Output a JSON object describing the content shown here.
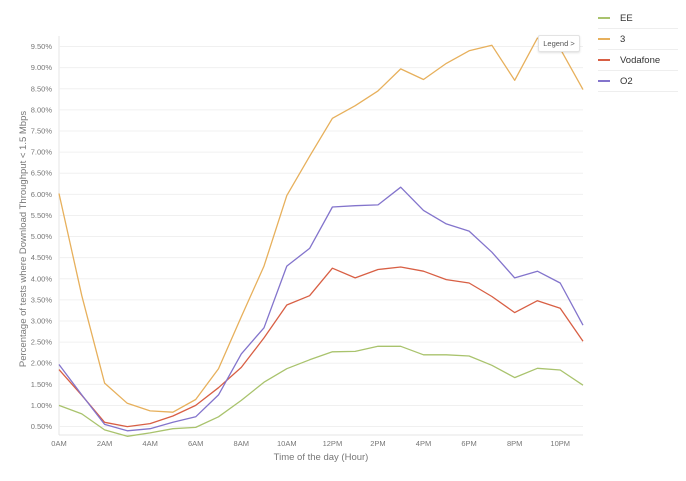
{
  "legend_button": {
    "label": "Legend",
    "chevron": ">"
  },
  "chart_data": {
    "type": "line",
    "xlabel": "Time of the day (Hour)",
    "ylabel": "Percentage of tests where Download Throughput < 1.5 Mbps",
    "x": [
      0,
      1,
      2,
      3,
      4,
      5,
      6,
      7,
      8,
      9,
      10,
      11,
      12,
      13,
      14,
      15,
      16,
      17,
      18,
      19,
      20,
      21,
      22,
      23
    ],
    "x_ticks": [
      {
        "x": 0,
        "label": "0AM"
      },
      {
        "x": 2,
        "label": "2AM"
      },
      {
        "x": 4,
        "label": "4AM"
      },
      {
        "x": 6,
        "label": "6AM"
      },
      {
        "x": 8,
        "label": "8AM"
      },
      {
        "x": 10,
        "label": "10AM"
      },
      {
        "x": 12,
        "label": "12PM"
      },
      {
        "x": 14,
        "label": "2PM"
      },
      {
        "x": 16,
        "label": "4PM"
      },
      {
        "x": 18,
        "label": "6PM"
      },
      {
        "x": 20,
        "label": "8PM"
      },
      {
        "x": 22,
        "label": "10PM"
      }
    ],
    "y_ticks": [
      0.5,
      1,
      1.5,
      2,
      2.5,
      3,
      3.5,
      4,
      4.5,
      5,
      5.5,
      6,
      6.5,
      7,
      7.5,
      8,
      8.5,
      9,
      9.5
    ],
    "y_tick_labels": [
      "0.50%",
      "1.00%",
      "1.50%",
      "2.00%",
      "2.50%",
      "3.00%",
      "3.50%",
      "4.00%",
      "4.50%",
      "5.00%",
      "5.50%",
      "6.00%",
      "6.50%",
      "7.00%",
      "7.50%",
      "8.00%",
      "8.50%",
      "9.00%",
      "9.50%"
    ],
    "xlim": [
      0,
      23
    ],
    "ylim": [
      0.3,
      9.75
    ],
    "grid": "horizontal",
    "legend": "right",
    "series": [
      {
        "name": "EE",
        "color": "#a9c36d",
        "values": [
          1.0,
          0.8,
          0.42,
          0.27,
          0.35,
          0.45,
          0.48,
          0.73,
          1.12,
          1.55,
          1.87,
          2.08,
          2.27,
          2.28,
          2.4,
          2.4,
          2.2,
          2.2,
          2.17,
          1.95,
          1.66,
          1.88,
          1.84,
          1.48
        ]
      },
      {
        "name": "3",
        "color": "#e7b05c",
        "values": [
          6.02,
          3.6,
          1.53,
          1.05,
          0.87,
          0.84,
          1.14,
          1.87,
          3.1,
          4.3,
          5.97,
          6.9,
          7.8,
          8.1,
          8.45,
          8.97,
          8.72,
          9.1,
          9.4,
          9.53,
          8.7,
          9.7,
          9.45,
          8.48
        ]
      },
      {
        "name": "Vodafone",
        "color": "#d85f44",
        "values": [
          1.85,
          1.24,
          0.6,
          0.5,
          0.57,
          0.75,
          1.0,
          1.42,
          1.9,
          2.6,
          3.38,
          3.6,
          4.25,
          4.02,
          4.22,
          4.28,
          4.18,
          3.98,
          3.9,
          3.58,
          3.2,
          3.48,
          3.3,
          2.52
        ]
      },
      {
        "name": "O2",
        "color": "#8374cc",
        "values": [
          1.97,
          1.25,
          0.55,
          0.4,
          0.45,
          0.6,
          0.73,
          1.25,
          2.22,
          2.84,
          4.3,
          4.72,
          5.7,
          5.73,
          5.75,
          6.17,
          5.62,
          5.3,
          5.13,
          4.63,
          4.02,
          4.18,
          3.9,
          2.9
        ]
      }
    ]
  }
}
